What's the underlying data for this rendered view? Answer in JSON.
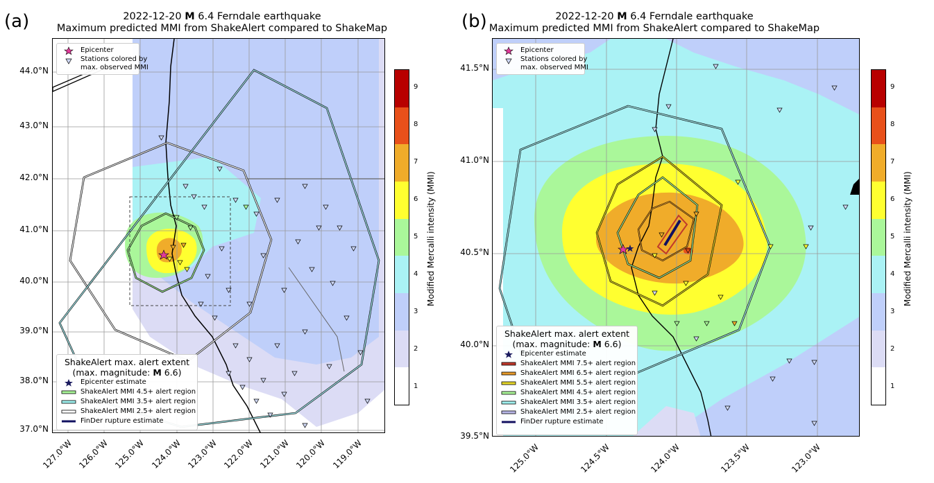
{
  "panels": [
    {
      "label": "(a)",
      "title_line1_pre": "2022-12-20 ",
      "title_line1_bold": "M",
      "title_line1_post": " 6.4 Ferndale earthquake",
      "title_line2": "Maximum predicted MMI from ShakeAlert compared to ShakeMap",
      "lat_ticks": [
        "44.0°N",
        "43.0°N",
        "42.0°N",
        "41.0°N",
        "40.0°N",
        "39.0°N",
        "38.0°N",
        "37.0°N"
      ],
      "lon_ticks": [
        "127.0°W",
        "126.0°W",
        "125.0°W",
        "124.0°W",
        "123.0°W",
        "122.0°W",
        "121.0°W",
        "120.0°W",
        "119.0°W"
      ],
      "top_legend": {
        "epicenter": "Epicenter",
        "stations_line1": "Stations colored by",
        "stations_line2": "max. observed MMI"
      },
      "bottom_legend": {
        "head_line1": "ShakeAlert max. alert extent",
        "head_line2_pre": "(max. magnitude: ",
        "head_line2_bold": "M",
        "head_line2_post": " 6.6)",
        "items": [
          {
            "label": "Epicenter estimate",
            "symbol": "star",
            "color": "#1a1a5e"
          },
          {
            "label": "ShakeAlert MMI 4.5+ alert region",
            "symbol": "line",
            "color": "#aaf79a"
          },
          {
            "label": "ShakeAlert MMI 3.5+ alert region",
            "symbol": "line",
            "color": "#9ff2f0"
          },
          {
            "label": "ShakeAlert MMI 2.5+ alert region",
            "symbol": "line",
            "color": "#ffffff"
          },
          {
            "label": "FinDer rupture estimate",
            "symbol": "thick",
            "color": "#101060"
          }
        ]
      },
      "colorbar": {
        "ticks": [
          "9",
          "8",
          "7",
          "6",
          "5",
          "4",
          "3",
          "2",
          "1"
        ],
        "label": "Modified Mercalli intensity (MMI)"
      }
    },
    {
      "label": "(b)",
      "title_line1_pre": "2022-12-20 ",
      "title_line1_bold": "M",
      "title_line1_post": " 6.4 Ferndale earthquake",
      "title_line2": "Maximum predicted MMI from ShakeAlert compared to ShakeMap",
      "lat_ticks": [
        "41.5°N",
        "41.0°N",
        "40.5°N",
        "40.0°N",
        "39.5°N"
      ],
      "lon_ticks": [
        "125.0°W",
        "124.5°W",
        "124.0°W",
        "123.5°W",
        "123.0°W"
      ],
      "top_legend": {
        "epicenter": "Epicenter",
        "stations_line1": "Stations colored by",
        "stations_line2": "max. observed MMI"
      },
      "bottom_legend": {
        "head_line1": "ShakeAlert max. alert extent",
        "head_line2_pre": "(max. magnitude: ",
        "head_line2_bold": "M",
        "head_line2_post": " 6.6)",
        "items": [
          {
            "label": "Epicenter estimate",
            "symbol": "star",
            "color": "#1a1a5e"
          },
          {
            "label": "ShakeAlert MMI 7.5+ alert region",
            "symbol": "line",
            "color": "#c0392b"
          },
          {
            "label": "ShakeAlert MMI 6.5+ alert region",
            "symbol": "line",
            "color": "#e59a2a"
          },
          {
            "label": "ShakeAlert MMI 5.5+ alert region",
            "symbol": "line",
            "color": "#e6d82a"
          },
          {
            "label": "ShakeAlert MMI 4.5+ alert region",
            "symbol": "line",
            "color": "#aaf79a"
          },
          {
            "label": "ShakeAlert MMI 3.5+ alert region",
            "symbol": "line",
            "color": "#9ff2f0"
          },
          {
            "label": "ShakeAlert MMI 2.5+ alert region",
            "symbol": "line",
            "color": "#b8b8e8"
          },
          {
            "label": "FinDer rupture estimate",
            "symbol": "thick",
            "color": "#101060"
          }
        ]
      },
      "colorbar": {
        "ticks": [
          "9",
          "8",
          "7",
          "6",
          "5",
          "4",
          "3",
          "2",
          "1"
        ],
        "label": "Modified Mercalli intensity (MMI)"
      }
    }
  ],
  "mmi_colors": {
    "1": "#ffffff",
    "2": "#dcdcf5",
    "3": "#bfcffa",
    "4": "#aaf2f5",
    "5": "#aaf79a",
    "6": "#ffff30",
    "7": "#f0ac2a",
    "8": "#e8501a",
    "9": "#b80000"
  }
}
